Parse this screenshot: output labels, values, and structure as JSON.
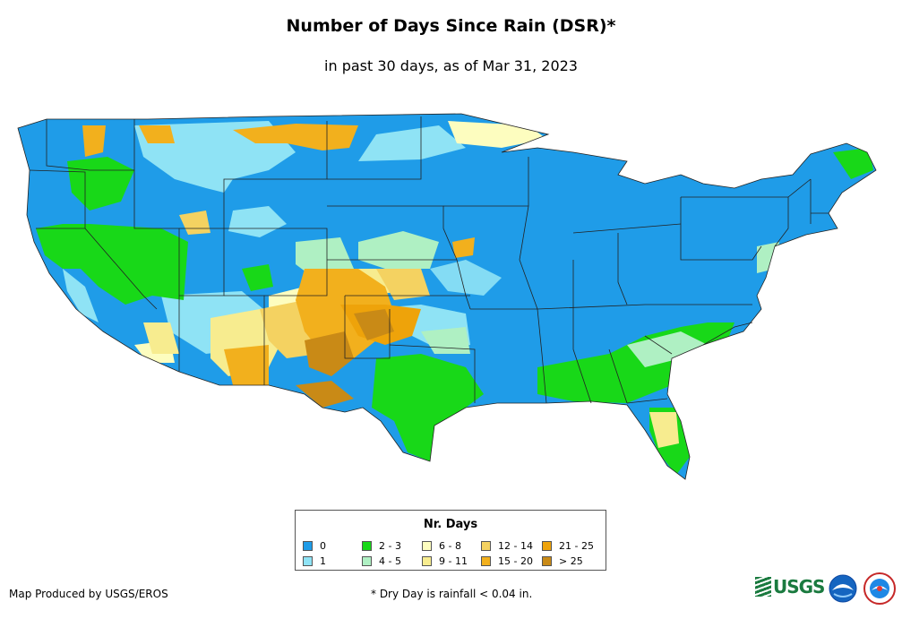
{
  "header": {
    "title": "Number of Days Since Rain (DSR)*",
    "subtitle": "in past 30 days, as of Mar 31, 2023"
  },
  "legend": {
    "title": "Nr. Days",
    "items": [
      {
        "label": "0",
        "color": "#1f9ce8"
      },
      {
        "label": "1",
        "color": "#8fe3f5"
      },
      {
        "label": "2 - 3",
        "color": "#18d818"
      },
      {
        "label": "4 - 5",
        "color": "#aff0c3"
      },
      {
        "label": "6 - 8",
        "color": "#fdfdbf"
      },
      {
        "label": "9 - 11",
        "color": "#f7ec8f"
      },
      {
        "label": "12 - 14",
        "color": "#f4d261"
      },
      {
        "label": "15 - 20",
        "color": "#f2b01d"
      },
      {
        "label": "21 - 25",
        "color": "#eea30a"
      },
      {
        "label": "> 25",
        "color": "#c98a16"
      }
    ]
  },
  "footer": {
    "credit": "Map Produced by USGS/EROS",
    "footnote": "* Dry Day is rainfall < 0.04 in.",
    "logos": [
      "usgs-logo",
      "noaa-logo",
      "nws-logo"
    ],
    "usgs_text": "USGS"
  }
}
